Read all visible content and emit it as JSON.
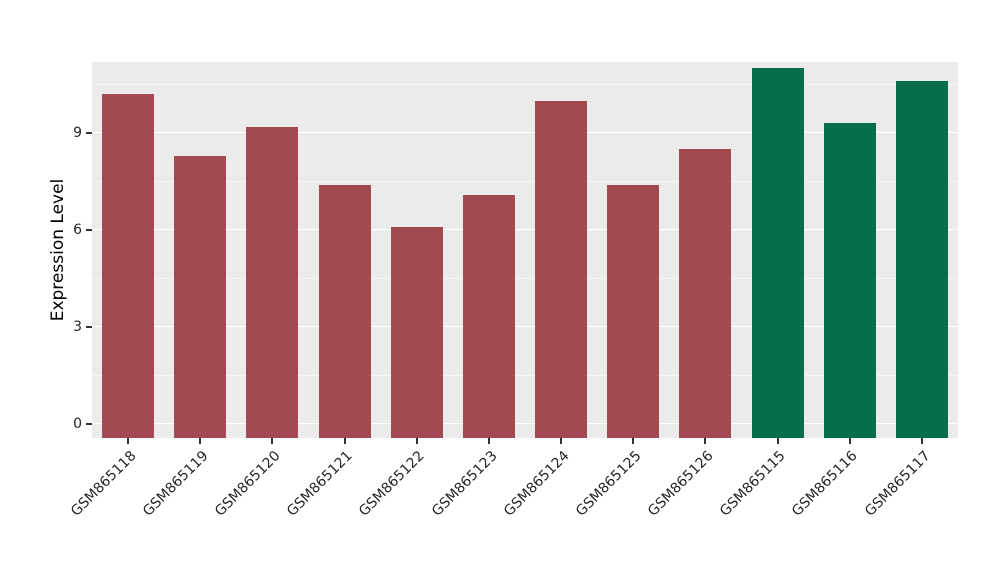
{
  "chart_data": {
    "type": "bar",
    "title": "",
    "xlabel": "",
    "ylabel": "Expression Level",
    "categories": [
      "GSM865118",
      "GSM865119",
      "GSM865120",
      "GSM865121",
      "GSM865122",
      "GSM865123",
      "GSM865124",
      "GSM865125",
      "GSM865126",
      "GSM865115",
      "GSM865116",
      "GSM865117"
    ],
    "values": [
      10.2,
      8.3,
      9.2,
      7.4,
      6.1,
      7.1,
      10.0,
      7.4,
      8.5,
      11.0,
      9.3,
      10.6
    ],
    "bar_colors": [
      "#a14a52",
      "#a14a52",
      "#a14a52",
      "#a14a52",
      "#a14a52",
      "#a14a52",
      "#a14a52",
      "#a14a52",
      "#a14a52",
      "#066e4b",
      "#066e4b",
      "#066e4b"
    ],
    "palette": {
      "group_red": "#a14a52",
      "group_green": "#066e4b"
    },
    "yticks": [
      0,
      3,
      6,
      9
    ],
    "ytick_labels": [
      "0",
      "3",
      "6",
      "9"
    ],
    "yticks_minor": [
      1.5,
      4.5,
      7.5,
      10.5
    ],
    "ylim": [
      0,
      11.2
    ],
    "grid": true,
    "legend": "none",
    "panel_bg": "#ebebeb",
    "axis_text_color": "#262626"
  }
}
